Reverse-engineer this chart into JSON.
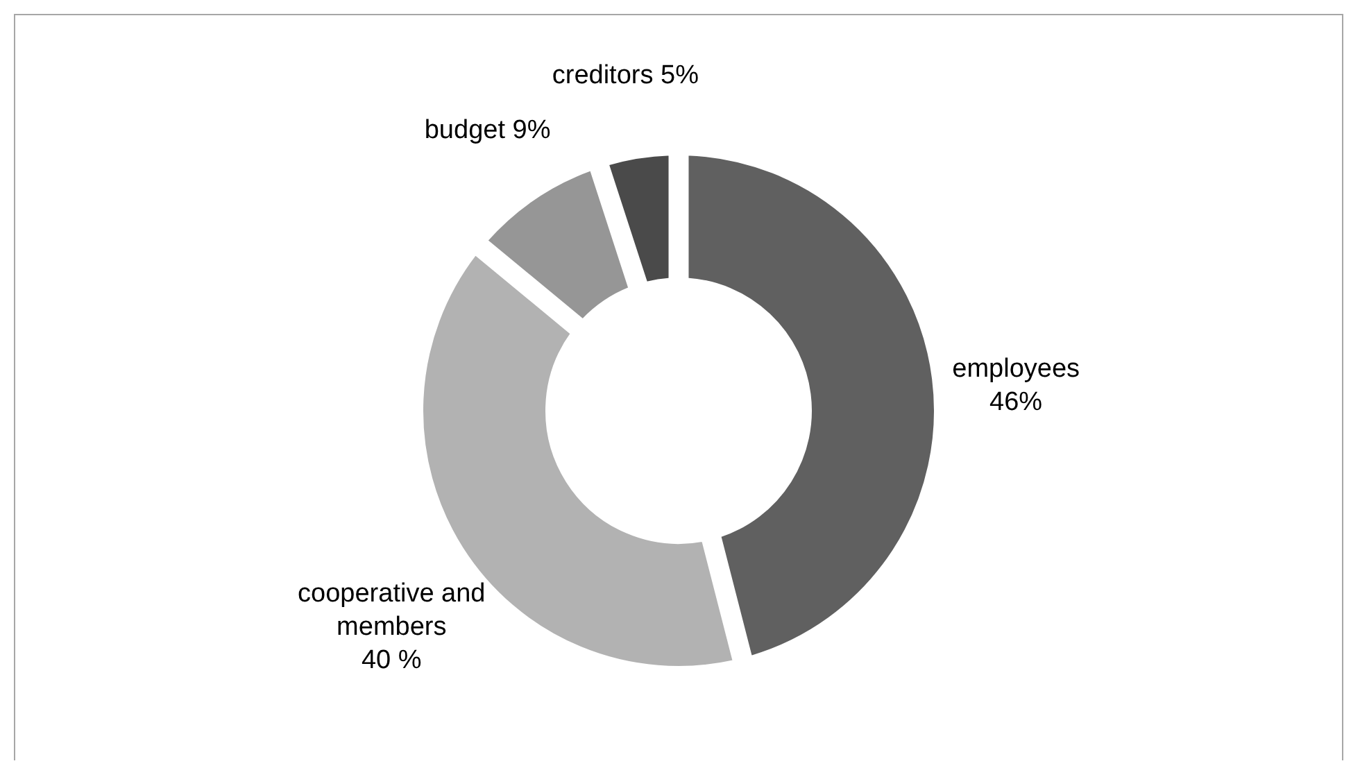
{
  "chart_data": {
    "type": "donut",
    "categories": [
      "employees",
      "cooperative and members",
      "budget",
      "creditors"
    ],
    "values": [
      46,
      40,
      9,
      5
    ],
    "value_labels": [
      "46%",
      "40 %",
      "9%",
      "5%"
    ],
    "colors": [
      "#606060",
      "#b2b2b2",
      "#969696",
      "#4a4a4a"
    ]
  }
}
